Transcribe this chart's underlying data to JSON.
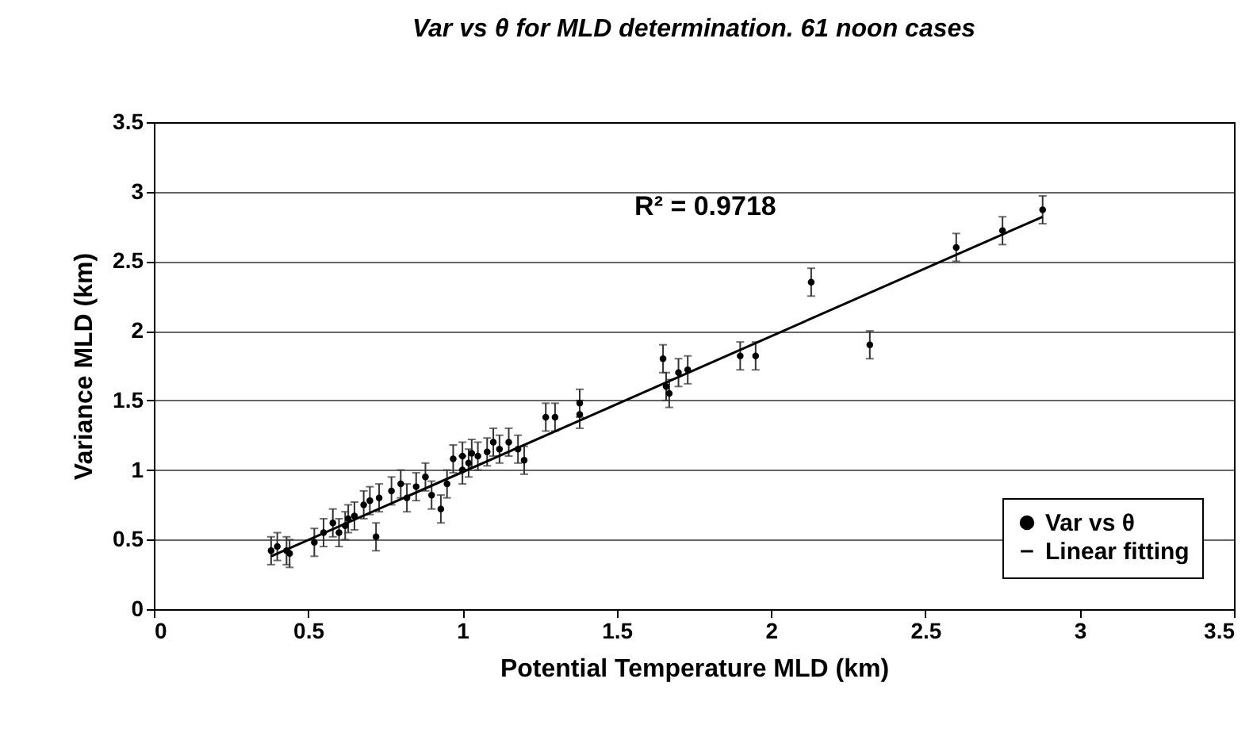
{
  "chart_data": {
    "type": "scatter",
    "title": "Var vs θ for MLD determination. 61 noon cases",
    "xlabel": "Potential Temperature MLD (km)",
    "ylabel": "Variance MLD (km)",
    "xlim": [
      0,
      3.5
    ],
    "xticks": [
      0,
      0.5,
      1,
      1.5,
      2,
      2.5,
      3,
      3.5
    ],
    "ylim": [
      0,
      3.5
    ],
    "yticks": [
      0,
      0.5,
      1,
      1.5,
      2,
      2.5,
      3,
      3.5
    ],
    "grid": "y",
    "legend": "bottom right",
    "annotations": [
      "R² = 0.9718"
    ],
    "series": [
      {
        "name": "Var vs θ",
        "color": "#000000",
        "marker": "circle",
        "x": [
          0.38,
          0.4,
          0.43,
          0.44,
          0.52,
          0.55,
          0.58,
          0.6,
          0.62,
          0.63,
          0.65,
          0.68,
          0.7,
          0.72,
          0.73,
          0.77,
          0.8,
          0.82,
          0.85,
          0.88,
          0.9,
          0.93,
          0.95,
          0.97,
          1.0,
          1.0,
          1.02,
          1.03,
          1.05,
          1.08,
          1.1,
          1.12,
          1.15,
          1.18,
          1.2,
          1.27,
          1.3,
          1.38,
          1.38,
          1.65,
          1.66,
          1.67,
          1.7,
          1.73,
          1.9,
          1.95,
          2.13,
          2.32,
          2.6,
          2.75,
          2.88
        ],
        "values": [
          0.42,
          0.45,
          0.42,
          0.4,
          0.48,
          0.55,
          0.62,
          0.55,
          0.6,
          0.65,
          0.67,
          0.75,
          0.78,
          0.52,
          0.8,
          0.85,
          0.9,
          0.8,
          0.88,
          0.95,
          0.82,
          0.72,
          0.9,
          1.08,
          1.0,
          1.1,
          1.05,
          1.12,
          1.1,
          1.13,
          1.2,
          1.15,
          1.2,
          1.15,
          1.07,
          1.38,
          1.38,
          1.4,
          1.48,
          1.8,
          1.6,
          1.55,
          1.7,
          1.72,
          1.82,
          1.82,
          2.35,
          1.9,
          2.6,
          2.72,
          2.87
        ],
        "errors": [
          0.1,
          0.1,
          0.1,
          0.1,
          0.1,
          0.1,
          0.1,
          0.1,
          0.1,
          0.1,
          0.1,
          0.1,
          0.1,
          0.1,
          0.1,
          0.1,
          0.1,
          0.1,
          0.1,
          0.1,
          0.1,
          0.1,
          0.1,
          0.1,
          0.1,
          0.1,
          0.1,
          0.1,
          0.1,
          0.1,
          0.1,
          0.1,
          0.1,
          0.1,
          0.1,
          0.1,
          0.1,
          0.1,
          0.1,
          0.1,
          0.1,
          0.1,
          0.1,
          0.1,
          0.1,
          0.1,
          0.1,
          0.1,
          0.1,
          0.1,
          0.1
        ]
      },
      {
        "name": "Linear fitting",
        "type": "line",
        "color": "#000000",
        "marker": "none",
        "x": [
          0.38,
          2.88
        ],
        "values": [
          0.38,
          2.82
        ]
      }
    ]
  }
}
